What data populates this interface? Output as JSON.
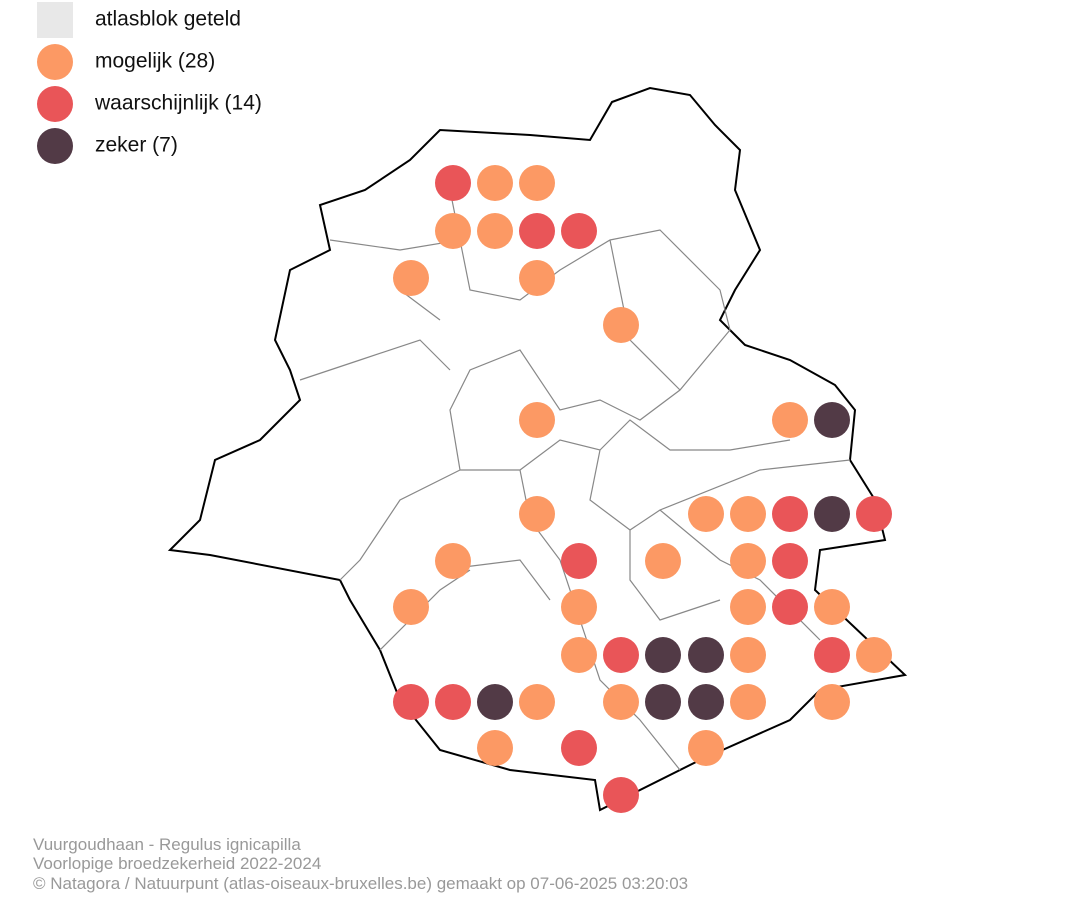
{
  "legend": [
    "atlasblok geteld",
    "mogelijk (28)",
    "waarschijnlijk (14)",
    "zeker (7)"
  ],
  "footer": [
    "Vuurgoudhaan - Regulus ignicapilla",
    "Voorlopige broedzekerheid 2022-2024",
    "© Natagora / Natuurpunt (atlas-oiseaux-bruxelles.be) gemaakt op 07-06-2025 03:20:03"
  ]
}
